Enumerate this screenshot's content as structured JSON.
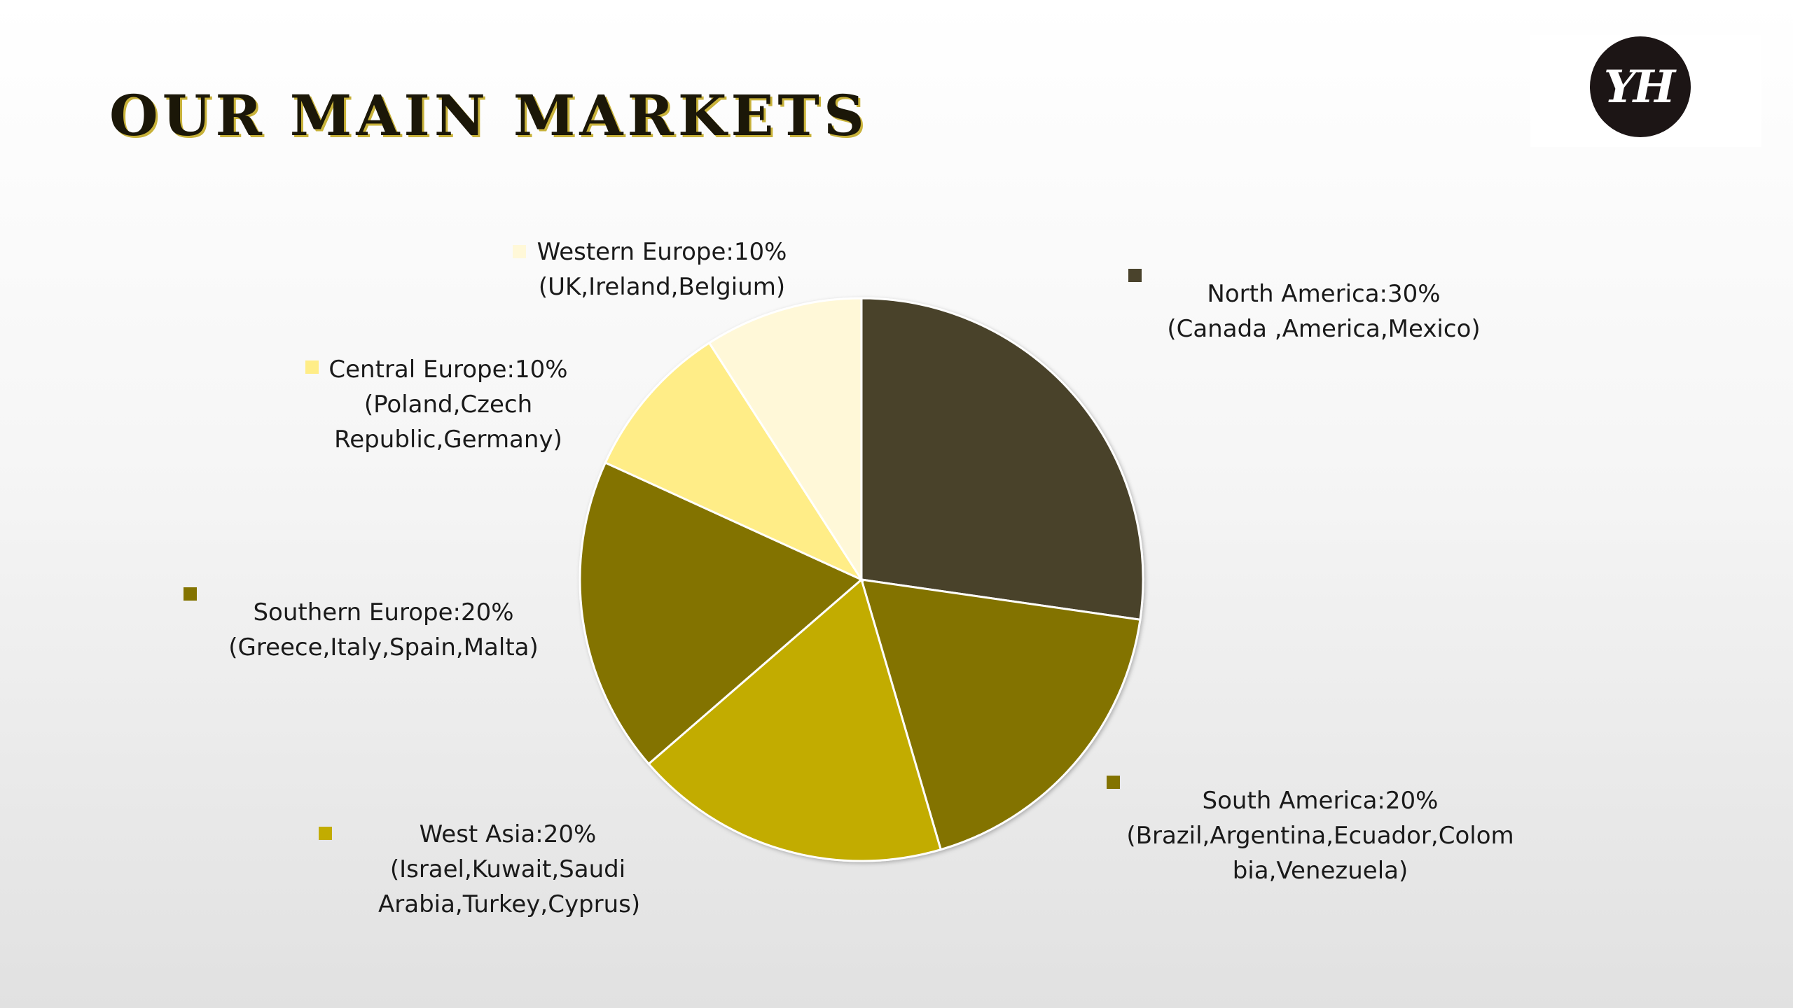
{
  "slide": {
    "title": "OUR MAIN MARKETS"
  },
  "logo": {
    "text": "YH"
  },
  "chart_data": {
    "type": "pie",
    "categories": [
      "North America",
      "South America",
      "West Asia",
      "Southern Europe",
      "Central Europe",
      "Western Europe"
    ],
    "values": [
      30,
      20,
      20,
      20,
      10,
      10
    ],
    "colors": [
      "#4a432c",
      "#837300",
      "#c2ac00",
      "#837300",
      "#ffed87",
      "#fff8d8"
    ],
    "labels": [
      [
        "North America:30%",
        "(Canada ,America,Mexico)"
      ],
      [
        "South America:20%",
        "(Brazil,Argentina,Ecuador,Colom",
        "bia,Venezuela)"
      ],
      [
        "West Asia:20%",
        "(Israel,Kuwait,Saudi",
        "Arabia,Turkey,Cyprus)"
      ],
      [
        "Southern Europe:20%",
        "(Greece,Italy,Spain,Malta)"
      ],
      [
        "Central Europe:10%",
        "(Poland,Czech",
        "Republic,Germany)"
      ],
      [
        "Western Europe:10%",
        "(UK,Ireland,Belgium)"
      ]
    ],
    "title": "",
    "legend": "labels beside slices"
  }
}
